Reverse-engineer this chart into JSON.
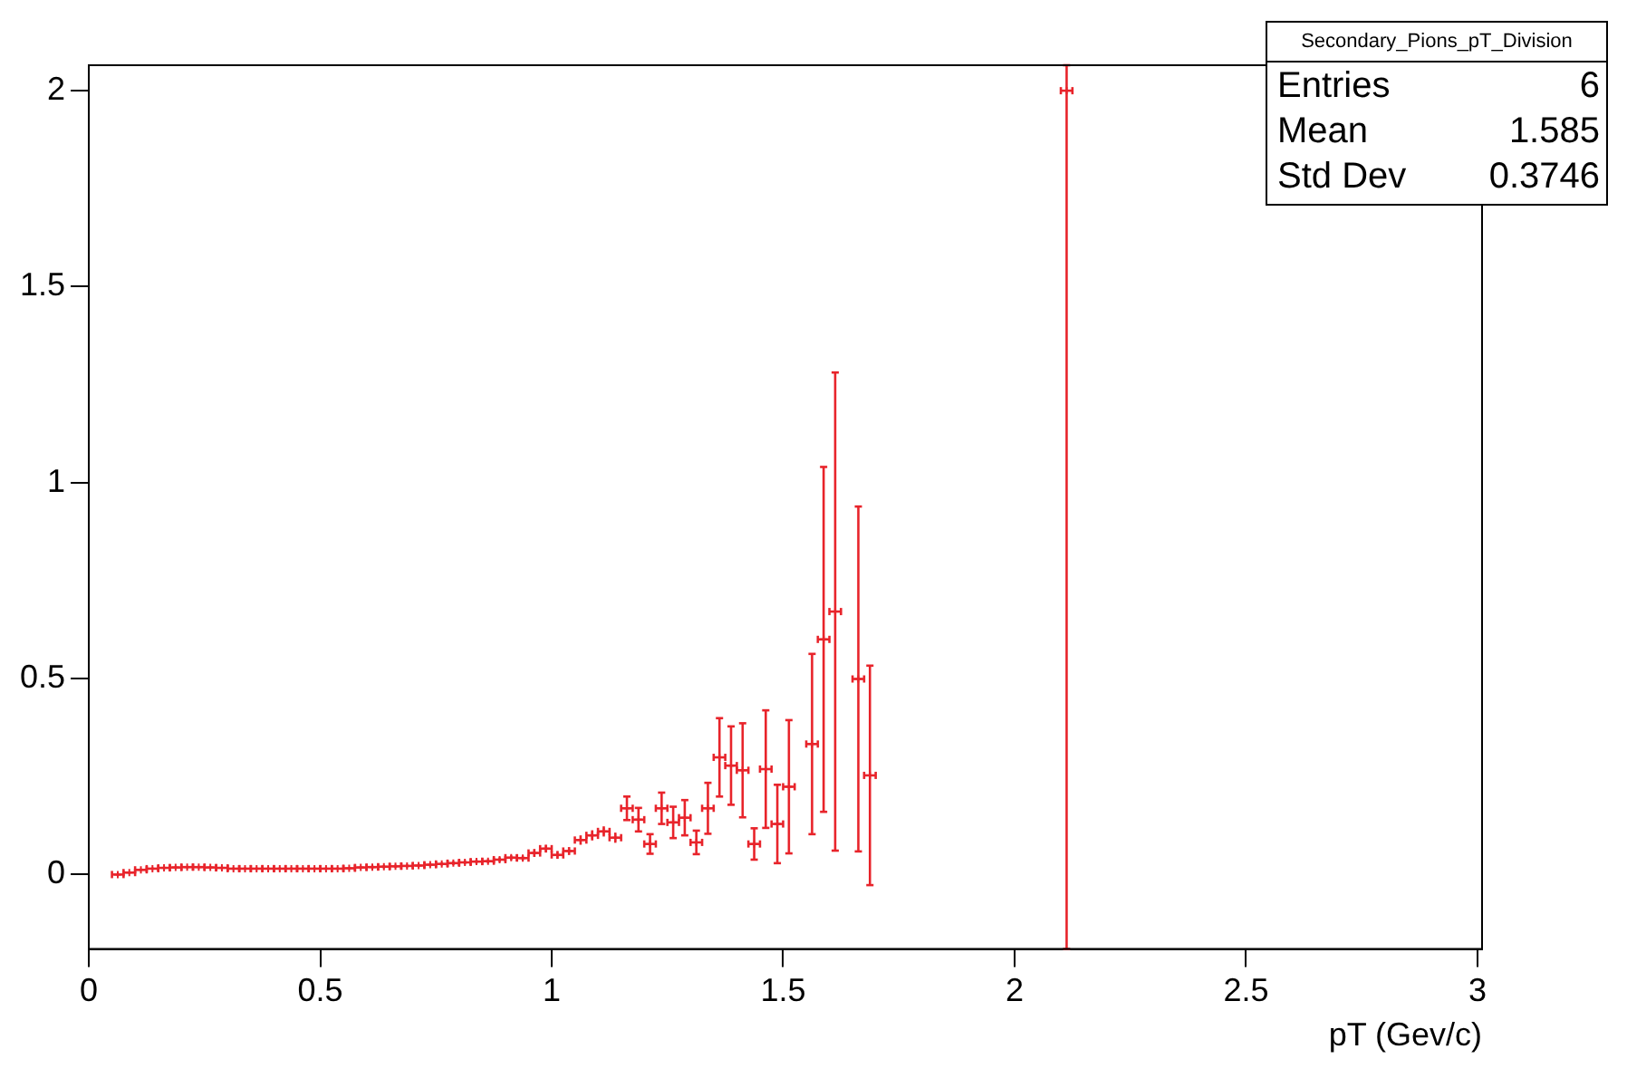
{
  "chart_data": {
    "type": "scatter",
    "xlabel": "pT (Gev/c)",
    "x": [
      0.0625,
      0.0875,
      0.1125,
      0.1375,
      0.1625,
      0.1875,
      0.2125,
      0.2375,
      0.2625,
      0.2875,
      0.3125,
      0.3375,
      0.3625,
      0.3875,
      0.4125,
      0.4375,
      0.4625,
      0.4875,
      0.5125,
      0.5375,
      0.5625,
      0.5875,
      0.6125,
      0.6375,
      0.6625,
      0.6875,
      0.7125,
      0.7375,
      0.7625,
      0.7875,
      0.8125,
      0.8375,
      0.8625,
      0.8875,
      0.9125,
      0.9375,
      0.9625,
      0.9875,
      1.0125,
      1.0375,
      1.0625,
      1.0875,
      1.1125,
      1.1375,
      1.1625,
      1.1875,
      1.2125,
      1.2375,
      1.2625,
      1.2875,
      1.3125,
      1.3375,
      1.3625,
      1.3875,
      1.4125,
      1.4375,
      1.4625,
      1.4875,
      1.5125,
      1.5625,
      1.5875,
      1.6125,
      1.6625,
      1.6875,
      2.1125
    ],
    "values": [
      0.0,
      0.005,
      0.012,
      0.015,
      0.017,
      0.018,
      0.019,
      0.019,
      0.018,
      0.017,
      0.015,
      0.015,
      0.015,
      0.015,
      0.015,
      0.015,
      0.015,
      0.015,
      0.015,
      0.015,
      0.016,
      0.018,
      0.019,
      0.02,
      0.021,
      0.022,
      0.023,
      0.025,
      0.027,
      0.029,
      0.031,
      0.033,
      0.034,
      0.038,
      0.043,
      0.042,
      0.055,
      0.066,
      0.05,
      0.06,
      0.088,
      0.1,
      0.11,
      0.094,
      0.169,
      0.14,
      0.078,
      0.169,
      0.133,
      0.145,
      0.082,
      0.169,
      0.299,
      0.278,
      0.266,
      0.078,
      0.269,
      0.129,
      0.224,
      0.333,
      0.6,
      0.671,
      0.499,
      0.253,
      2.0
    ],
    "errors": [
      0.003,
      0.003,
      0.003,
      0.003,
      0.003,
      0.003,
      0.003,
      0.003,
      0.003,
      0.003,
      0.003,
      0.003,
      0.003,
      0.003,
      0.003,
      0.003,
      0.003,
      0.003,
      0.003,
      0.003,
      0.003,
      0.003,
      0.004,
      0.004,
      0.004,
      0.004,
      0.004,
      0.004,
      0.004,
      0.005,
      0.005,
      0.005,
      0.005,
      0.006,
      0.006,
      0.006,
      0.01,
      0.01,
      0.01,
      0.01,
      0.012,
      0.013,
      0.013,
      0.013,
      0.03,
      0.03,
      0.025,
      0.04,
      0.04,
      0.045,
      0.03,
      0.065,
      0.1,
      0.1,
      0.12,
      0.04,
      0.15,
      0.1,
      0.17,
      0.23,
      0.44,
      0.61,
      0.44,
      0.28,
      [
        -0.19,
        2.065
      ]
    ],
    "xerrors": [
      0.0125,
      0.0125,
      0.0125,
      0.0125,
      0.0125,
      0.0125,
      0.0125,
      0.0125,
      0.0125,
      0.0125,
      0.0125,
      0.0125,
      0.0125,
      0.0125,
      0.0125,
      0.0125,
      0.0125,
      0.0125,
      0.0125,
      0.0125,
      0.0125,
      0.0125,
      0.0125,
      0.0125,
      0.0125,
      0.0125,
      0.0125,
      0.0125,
      0.0125,
      0.0125,
      0.0125,
      0.0125,
      0.0125,
      0.0125,
      0.0125,
      0.0125,
      0.0125,
      0.0125,
      0.0125,
      0.0125,
      0.0125,
      0.0125,
      0.0125,
      0.0125,
      0.0125,
      0.0125,
      0.0125,
      0.0125,
      0.0125,
      0.0125,
      0.0125,
      0.0125,
      0.0125,
      0.0125,
      0.0125,
      0.0125,
      0.0125,
      0.0125,
      0.0125,
      0.0125,
      0.0125,
      0.0125,
      0.0125,
      0.0125,
      0.0125
    ],
    "color": "#e8242b",
    "marker": "cross",
    "xlim": [
      0,
      3.01
    ],
    "xticks": [
      0,
      0.5,
      1,
      1.5,
      2,
      2.5,
      3
    ],
    "ylim": [
      -0.19,
      2.065
    ],
    "yticks": [
      0,
      0.5,
      1,
      1.5,
      2
    ],
    "grid": false,
    "legend": false,
    "annotations": [
      "Secondary_Pions_pT_Division",
      "Entries",
      "6",
      "Mean",
      "1.585",
      "Std Dev",
      "0.3746"
    ]
  }
}
